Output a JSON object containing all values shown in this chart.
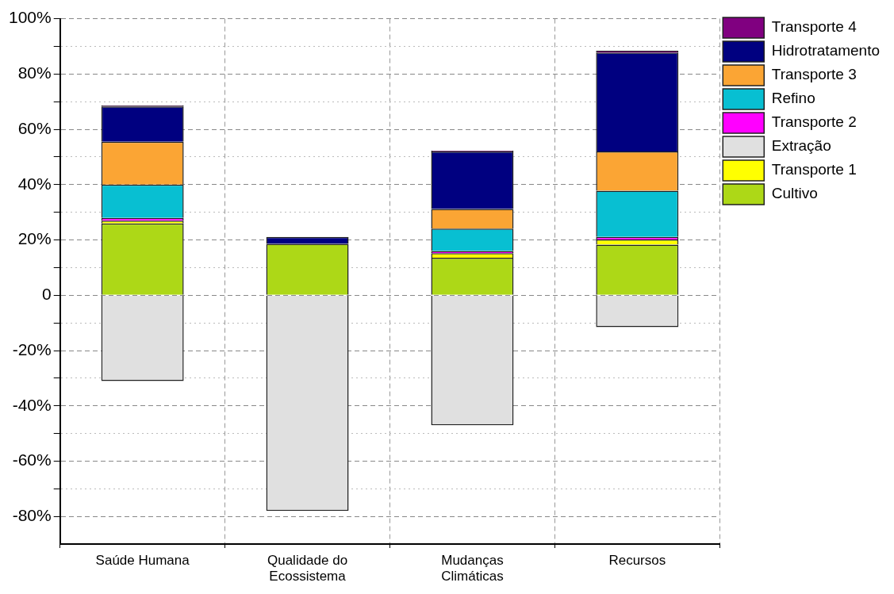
{
  "chart_data": {
    "type": "bar",
    "stacked": true,
    "categories": [
      "Saúde Humana",
      "Qualidade do Ecossistema",
      "Mudanças Climáticas",
      "Recursos"
    ],
    "series": [
      {
        "name": "Cultivo",
        "color": "#add817",
        "values": [
          26,
          18.6,
          13.6,
          18.3
        ]
      },
      {
        "name": "Transporte 1",
        "color": "#ffff00",
        "values": [
          1,
          0,
          1.6,
          1.9
        ]
      },
      {
        "name": "Extração",
        "color": "#e0e0e0",
        "values": [
          -31,
          -78,
          -47,
          -11.5
        ]
      },
      {
        "name": "Transporte 2",
        "color": "#ff00ff",
        "values": [
          1,
          0,
          0.8,
          0.9
        ]
      },
      {
        "name": "Refino",
        "color": "#08bfd2",
        "values": [
          12,
          null,
          8.1,
          16.7
        ]
      },
      {
        "name": "Transporte 3",
        "color": "#fba534",
        "values": [
          15.5,
          0,
          7.1,
          14.2
        ]
      },
      {
        "name": "Hidrotratamento",
        "color": "#000080",
        "values": [
          12.8,
          2.5,
          20.8,
          35.8
        ]
      },
      {
        "name": "Transporte 4",
        "color": "#800080",
        "values": [
          0.3,
          0,
          0.3,
          0.6
        ]
      }
    ],
    "ylim": [
      -90,
      100
    ],
    "yticks": [
      {
        "value": -80,
        "label": "-80%"
      },
      {
        "value": -70,
        "label": null
      },
      {
        "value": -60,
        "label": "-60%"
      },
      {
        "value": -50,
        "label": null
      },
      {
        "value": -40,
        "label": "-40%"
      },
      {
        "value": -30,
        "label": null
      },
      {
        "value": -20,
        "label": "-20%"
      },
      {
        "value": -10,
        "label": null
      },
      0,
      {
        "value": 10,
        "label": null
      },
      {
        "value": 20,
        "label": "20%"
      },
      {
        "value": 30,
        "label": null
      },
      {
        "value": 40,
        "label": "40%"
      },
      {
        "value": 50,
        "label": null
      },
      {
        "value": 60,
        "label": "60%"
      },
      {
        "value": 70,
        "label": null
      },
      {
        "value": 80,
        "label": "80%"
      },
      {
        "value": 90,
        "label": null
      },
      {
        "value": 100,
        "label": "100%"
      }
    ],
    "grid": true,
    "legend": "top right"
  }
}
